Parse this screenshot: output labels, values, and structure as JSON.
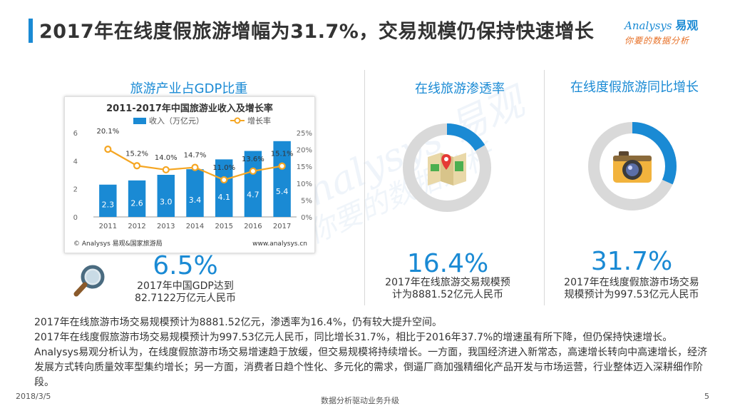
{
  "header": {
    "title": "2017年在线度假旅游增幅为31.7%，交易规模仍保持快速增长",
    "logo_main": "nalysys",
    "logo_mark": "A",
    "logo_cn": "易观",
    "logo_sub": "你要的数据分析"
  },
  "sections": {
    "gdp": {
      "title": "旅游产业占GDP比重",
      "big_number": "6.5%",
      "desc_line1": "2017年中国GDP达到",
      "desc_line2": "82.7122万亿元人民币",
      "icon": "magnifier-icon"
    },
    "penetration": {
      "title": "在线旅游渗透率",
      "big_number": "16.4%",
      "desc_line1": "2017年在线旅游交易规模预",
      "desc_line2": "计为8881.52亿元人民币",
      "ratio": 0.164,
      "icon": "map-icon"
    },
    "vacation": {
      "title": "在线度假旅游同比增长",
      "big_number": "31.7%",
      "desc_line1": "2017年在线度假旅游市场交易",
      "desc_line2": "规模预计为997.53亿元人民币",
      "ratio": 0.317,
      "icon": "camera-icon"
    }
  },
  "chart_data": {
    "type": "bar",
    "title": "2011-2017年中国旅游业收入及增长率",
    "categories": [
      "2011",
      "2012",
      "2013",
      "2014",
      "2015",
      "2016",
      "2017"
    ],
    "series": [
      {
        "name": "收入（万亿元）",
        "type": "bar",
        "axis": "left",
        "values": [
          2.3,
          2.6,
          3.0,
          3.4,
          4.1,
          4.7,
          5.4
        ]
      },
      {
        "name": "增长率",
        "type": "line",
        "axis": "right",
        "values": [
          20.1,
          15.2,
          14.0,
          14.7,
          11.0,
          13.6,
          15.1
        ]
      }
    ],
    "bar_labels": [
      "2.3",
      "2.6",
      "3.0",
      "3.4",
      "4.1",
      "4.7",
      "5.4"
    ],
    "line_labels": [
      "20.1%",
      "15.2%",
      "14.0%",
      "14.7%",
      "11.0%",
      "13.6%",
      "15.1%"
    ],
    "ylim_left": [
      0,
      6
    ],
    "yticks_left": [
      "0",
      "2",
      "4",
      "6"
    ],
    "ylim_right": [
      0,
      25
    ],
    "yticks_right": [
      "0%",
      "5%",
      "10%",
      "15%",
      "20%",
      "25%"
    ],
    "source_left": "© Analysys 易观&国家旅游局",
    "source_right": "www.analysys.cn",
    "colors": {
      "bar": "#1a8ad4",
      "line": "#f5a623"
    }
  },
  "body": {
    "line1": "2017年在线旅游市场交易规模预计为8881.52亿元，渗透率为16.4%，仍有较大提升空间。",
    "line2": "2017年在线度假旅游市场交易规模预计为997.53亿元人民币，同比增长31.7%，相比于2016年37.7%的增速虽有所下降，但仍保持快速增长。",
    "line3": "Analysys易观分析认为，在线度假旅游市场交易增速趋于放缓，但交易规模将持续增长。一方面，我国经济进入新常态，高速增长转向中高速增长，经济发展方式转向质量效率型集约增长；另一方面，消费者日趋个性化、多元化的需求，倒逼厂商加强精细化产品开发与市场运营，行业整体迈入深耕细作阶段。"
  },
  "footer": {
    "date": "2018/3/5",
    "slogan": "数据分析驱动业务升级",
    "page": "5"
  },
  "colors": {
    "accent": "#1a8ad4",
    "ring_track": "#d9d9d9",
    "logo_orange": "#e76f25"
  }
}
